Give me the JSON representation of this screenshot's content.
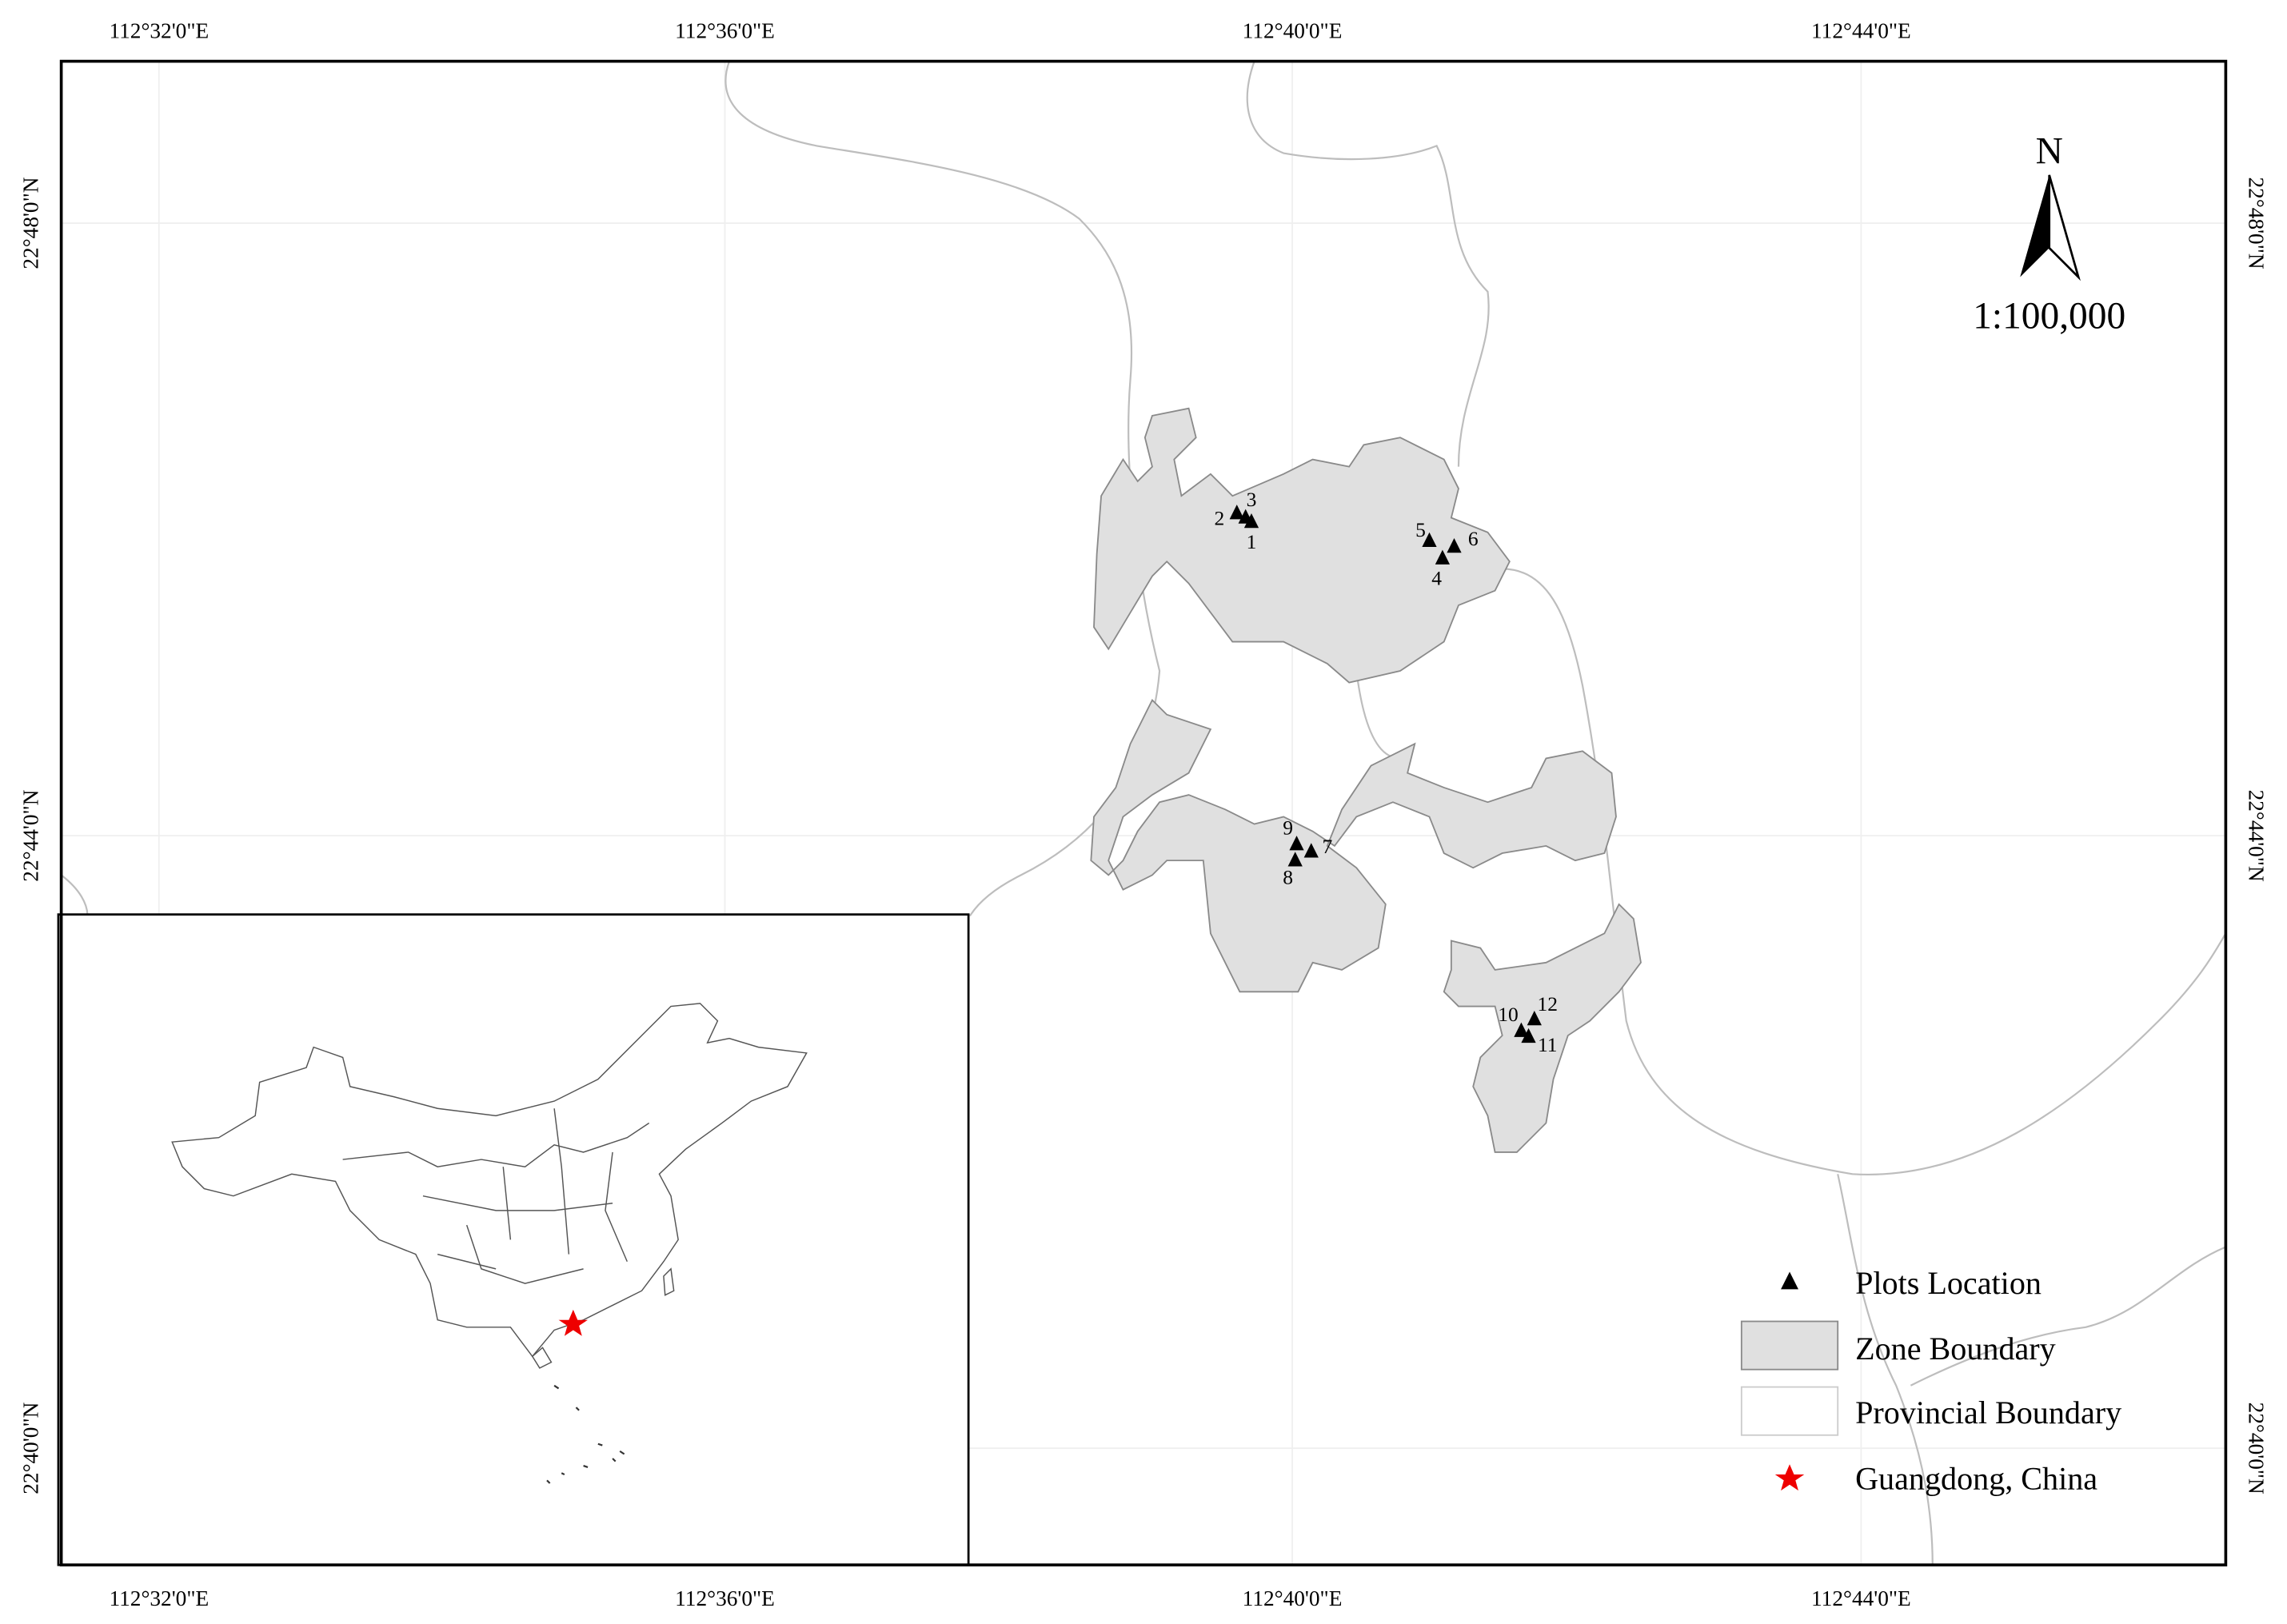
{
  "map": {
    "top_labels": [
      "112°32'0\"E",
      "112°36'0\"E",
      "112°40'0\"E",
      "112°44'0\"E"
    ],
    "bottom_labels": [
      "112°32'0\"E",
      "112°36'0\"E",
      "112°40'0\"E",
      "112°44'0\"E"
    ],
    "left_labels": [
      "22°48'0\"N",
      "22°44'0\"N",
      "22°40'0\"N"
    ],
    "right_labels": [
      "22°48'0\"N",
      "22°44'0\"N",
      "22°40'0\"N"
    ],
    "north": "N",
    "scale": "1:100,000",
    "plots": [
      "1",
      "2",
      "3",
      "4",
      "5",
      "6",
      "7",
      "8",
      "9",
      "10",
      "11",
      "12"
    ],
    "legend": [
      "Plots Location",
      "Zone Boundary",
      "Provincial Boundary",
      "Guangdong, China"
    ]
  }
}
